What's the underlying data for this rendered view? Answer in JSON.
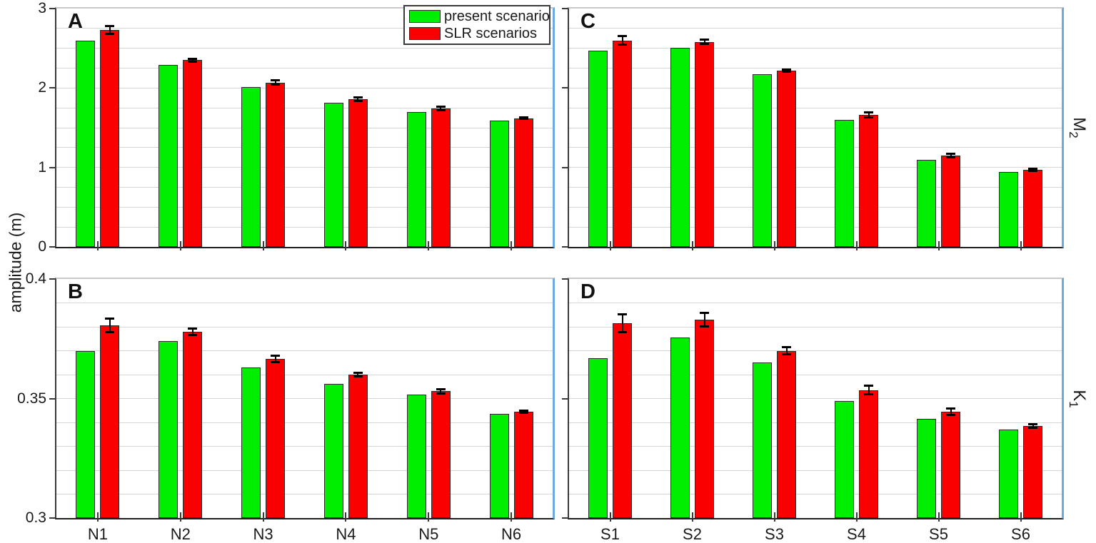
{
  "figure": {
    "ylabel": "amplitude (m)",
    "colors": {
      "present": "#00ee00",
      "slr": "#fb0000",
      "grid": "#d6d6d6",
      "axis": "#2b2b2b",
      "panel_right_border": "#6baae0",
      "error_bar": "#000000"
    },
    "legend": {
      "items": [
        {
          "label": "present scenario",
          "color_key": "present"
        },
        {
          "label": "SLR scenarios",
          "color_key": "slr"
        }
      ]
    }
  },
  "chart_data": [
    {
      "id": "a",
      "letter": "A",
      "type": "bar",
      "constituent": "M2",
      "categories": [
        "N1",
        "N2",
        "N3",
        "N4",
        "N5",
        "N6"
      ],
      "ylim": [
        0,
        3
      ],
      "grid_step": 0.25,
      "yticks": [
        {
          "v": 0,
          "label": "0"
        },
        {
          "v": 1,
          "label": "1"
        },
        {
          "v": 2,
          "label": "2"
        },
        {
          "v": 3,
          "label": "3"
        }
      ],
      "show_y_labels": true,
      "show_x_labels": false,
      "series": [
        {
          "name": "present scenario",
          "color_key": "present",
          "values": [
            2.6,
            2.29,
            2.01,
            1.81,
            1.7,
            1.59
          ]
        },
        {
          "name": "SLR scenarios",
          "color_key": "slr",
          "values": [
            2.73,
            2.35,
            2.07,
            1.86,
            1.74,
            1.62
          ],
          "errors": [
            0.05,
            0.025,
            0.03,
            0.03,
            0.025,
            0.015
          ]
        }
      ]
    },
    {
      "id": "c",
      "letter": "C",
      "type": "bar",
      "constituent": "M2",
      "right_label": {
        "base": "M",
        "sub": "2"
      },
      "categories": [
        "S1",
        "S2",
        "S3",
        "S4",
        "S5",
        "S6"
      ],
      "ylim": [
        0,
        3
      ],
      "grid_step": 0.25,
      "yticks": [
        {
          "v": 0,
          "label": "0"
        },
        {
          "v": 1,
          "label": "1"
        },
        {
          "v": 2,
          "label": "2"
        },
        {
          "v": 3,
          "label": "3"
        }
      ],
      "show_y_labels": false,
      "show_x_labels": false,
      "series": [
        {
          "name": "present scenario",
          "color_key": "present",
          "values": [
            2.47,
            2.51,
            2.17,
            1.6,
            1.1,
            0.94
          ]
        },
        {
          "name": "SLR scenarios",
          "color_key": "slr",
          "values": [
            2.6,
            2.58,
            2.22,
            1.66,
            1.15,
            0.97
          ],
          "errors": [
            0.06,
            0.03,
            0.02,
            0.035,
            0.03,
            0.015
          ]
        }
      ]
    },
    {
      "id": "b",
      "letter": "B",
      "type": "bar",
      "constituent": "K1",
      "categories": [
        "N1",
        "N2",
        "N3",
        "N4",
        "N5",
        "N6"
      ],
      "ylim": [
        0.3,
        0.4
      ],
      "grid_step": 0.01,
      "yticks": [
        {
          "v": 0.3,
          "label": "0.3"
        },
        {
          "v": 0.35,
          "label": "0.35"
        },
        {
          "v": 0.4,
          "label": "0.4"
        }
      ],
      "show_y_labels": true,
      "show_x_labels": true,
      "series": [
        {
          "name": "present scenario",
          "color_key": "present",
          "values": [
            0.37,
            0.374,
            0.363,
            0.356,
            0.3515,
            0.3435
          ]
        },
        {
          "name": "SLR scenarios",
          "color_key": "slr",
          "values": [
            0.3805,
            0.378,
            0.3665,
            0.36,
            0.353,
            0.3445
          ],
          "errors": [
            0.003,
            0.0015,
            0.0015,
            0.001,
            0.001,
            0.0006
          ]
        }
      ]
    },
    {
      "id": "d",
      "letter": "D",
      "type": "bar",
      "constituent": "K1",
      "right_label": {
        "base": "K",
        "sub": "1"
      },
      "categories": [
        "S1",
        "S2",
        "S3",
        "S4",
        "S5",
        "S6"
      ],
      "ylim": [
        0.3,
        0.4
      ],
      "grid_step": 0.01,
      "yticks": [
        {
          "v": 0.3,
          "label": "0.3"
        },
        {
          "v": 0.35,
          "label": "0.35"
        },
        {
          "v": 0.4,
          "label": "0.4"
        }
      ],
      "show_y_labels": false,
      "show_x_labels": true,
      "series": [
        {
          "name": "present scenario",
          "color_key": "present",
          "values": [
            0.367,
            0.3755,
            0.365,
            0.349,
            0.3415,
            0.337
          ]
        },
        {
          "name": "SLR scenarios",
          "color_key": "slr",
          "values": [
            0.3815,
            0.383,
            0.37,
            0.3535,
            0.3445,
            0.3385
          ],
          "errors": [
            0.004,
            0.003,
            0.0015,
            0.002,
            0.0015,
            0.001
          ]
        }
      ]
    }
  ]
}
